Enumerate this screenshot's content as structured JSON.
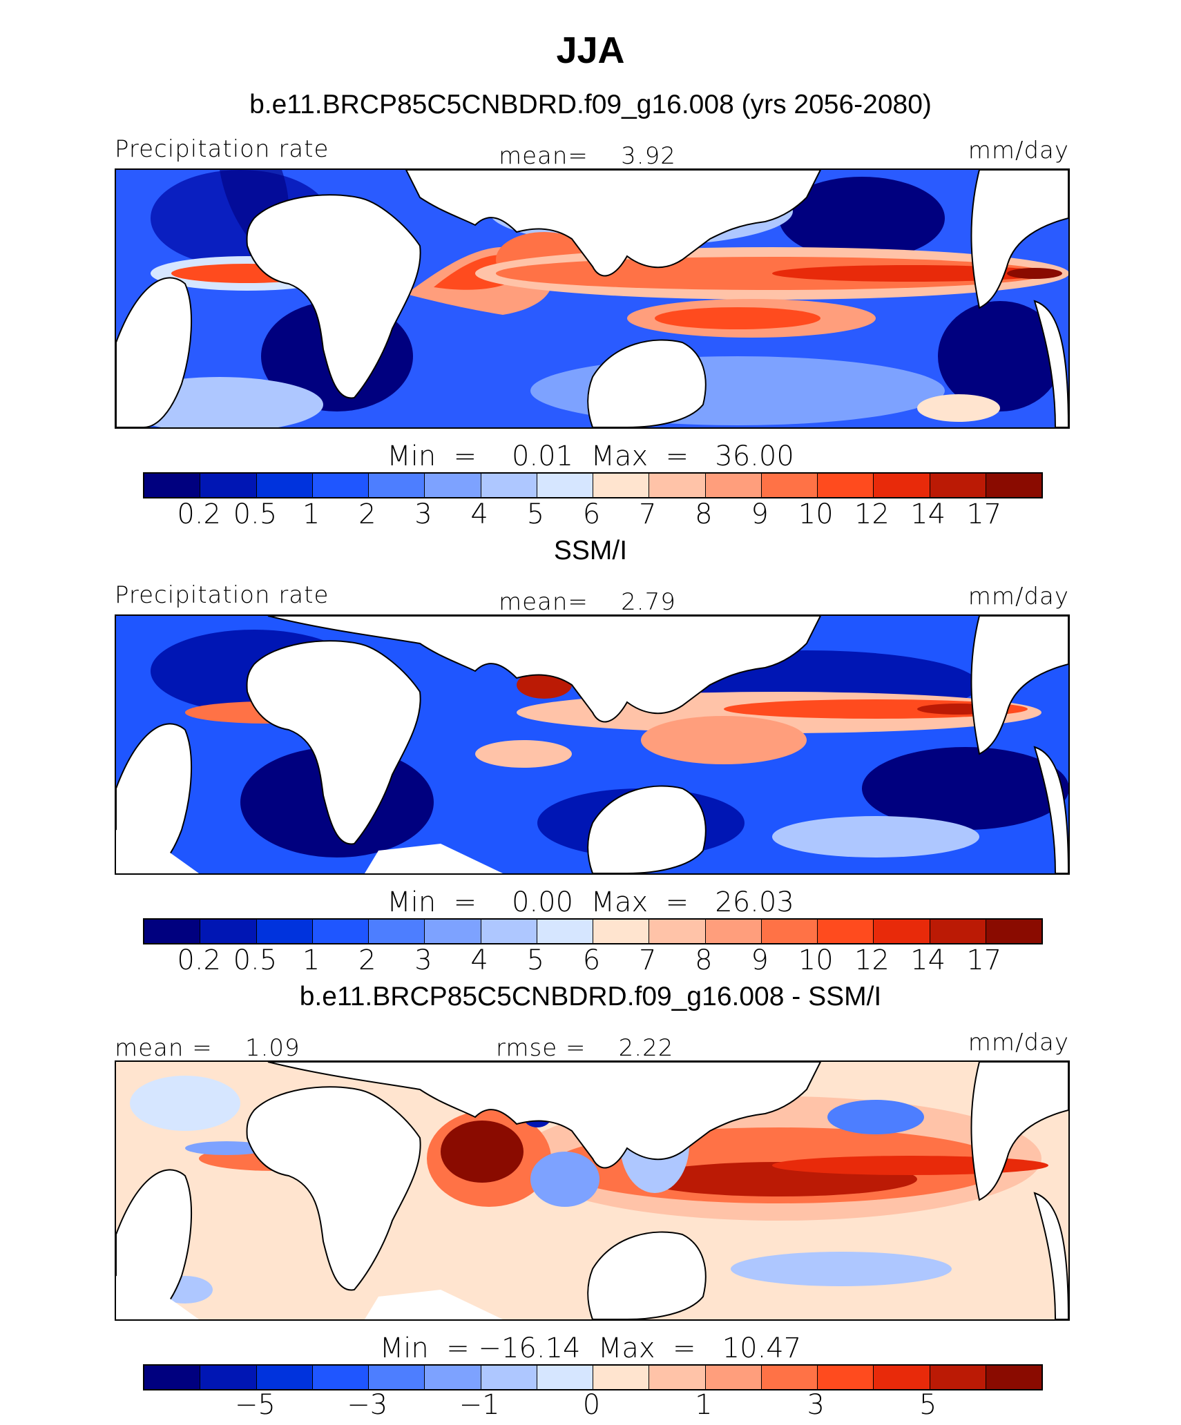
{
  "title": "JJA",
  "panels": [
    {
      "heading": "b.e11.BRCP85C5CNBDRD.f09_g16.008 (yrs 2056-2080)",
      "left_label": "Precipitation rate",
      "center_label": "mean=    3.92",
      "right_label": "mm/day",
      "minmax": "Min  =    0.01  Max  =   36.00",
      "colorbar_ticks": [
        "0.2",
        "0.5",
        "1",
        "2",
        "3",
        "4",
        "5",
        "6",
        "7",
        "8",
        "9",
        "10",
        "12",
        "14",
        "17"
      ]
    },
    {
      "heading": "SSM/I",
      "left_label": "Precipitation rate",
      "center_label": "mean=    2.79",
      "right_label": "mm/day",
      "minmax": "Min  =    0.00  Max  =   26.03",
      "colorbar_ticks": [
        "0.2",
        "0.5",
        "1",
        "2",
        "3",
        "4",
        "5",
        "6",
        "7",
        "8",
        "9",
        "10",
        "12",
        "14",
        "17"
      ]
    },
    {
      "heading": "b.e11.BRCP85C5CNBDRD.f09_g16.008 - SSM/I",
      "left_label": "mean =    1.09",
      "center_label": "rmse =    2.22",
      "right_label": "mm/day",
      "minmax": "Min  = −16.14  Max  =   10.47",
      "colorbar_ticks": [
        "−5",
        "−3",
        "−1",
        "0",
        "1",
        "3",
        "5"
      ]
    }
  ],
  "colorbar_colors": [
    "#00007f",
    "#0016b4",
    "#0033dd",
    "#1f56ff",
    "#4d7eff",
    "#7da2ff",
    "#aec7ff",
    "#d6e6ff",
    "#ffe4cf",
    "#ffc3a8",
    "#ff9e7c",
    "#ff7246",
    "#ff4b1e",
    "#e82a0a",
    "#bb1a05",
    "#8a0b00"
  ],
  "chart_data": [
    {
      "type": "heatmap",
      "title": "b.e11.BRCP85C5CNBDRD.f09_g16.008 (yrs 2056-2080)",
      "field": "Precipitation rate",
      "units": "mm/day",
      "mean": 3.92,
      "min": 0.01,
      "max": 36.0,
      "contour_levels": [
        0.2,
        0.5,
        1,
        2,
        3,
        4,
        5,
        6,
        7,
        8,
        9,
        10,
        12,
        14,
        17
      ]
    },
    {
      "type": "heatmap",
      "title": "SSM/I",
      "field": "Precipitation rate",
      "units": "mm/day",
      "mean": 2.79,
      "min": 0.0,
      "max": 26.03,
      "contour_levels": [
        0.2,
        0.5,
        1,
        2,
        3,
        4,
        5,
        6,
        7,
        8,
        9,
        10,
        12,
        14,
        17
      ]
    },
    {
      "type": "heatmap",
      "title": "b.e11.BRCP85C5CNBDRD.f09_g16.008 - SSM/I",
      "units": "mm/day",
      "mean": 1.09,
      "rmse": 2.22,
      "min": -16.14,
      "max": 10.47,
      "contour_levels_labeled": [
        -5,
        -3,
        -1,
        0,
        1,
        3,
        5
      ]
    }
  ]
}
